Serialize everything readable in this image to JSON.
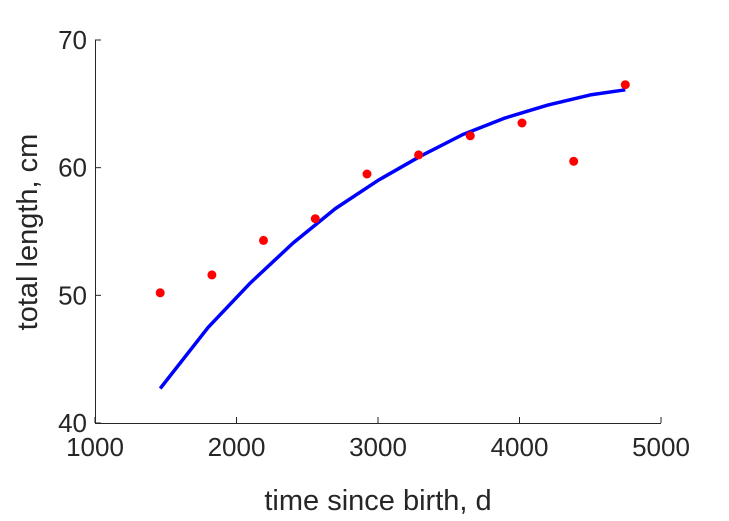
{
  "chart_data": {
    "type": "scatter",
    "xlabel": "time since birth, d",
    "ylabel": "total length, cm",
    "xlim": [
      1000,
      5000
    ],
    "ylim": [
      40,
      70
    ],
    "xticks": [
      "1000",
      "2000",
      "3000",
      "4000",
      "5000"
    ],
    "yticks": [
      "40",
      "50",
      "60",
      "70"
    ],
    "grid": false,
    "series": [
      {
        "type": "scatter",
        "color": "#ff0000",
        "x": [
          1461,
          1826,
          2191,
          2557,
          2922,
          3287,
          3652,
          4018,
          4383,
          4748
        ],
        "y": [
          50.2,
          51.6,
          54.3,
          56.0,
          59.5,
          61.0,
          62.5,
          63.5,
          60.5,
          66.5
        ]
      },
      {
        "type": "line",
        "color": "#0000ff",
        "x": [
          1461,
          1800,
          2100,
          2400,
          2700,
          3000,
          3300,
          3600,
          3900,
          4200,
          4500,
          4748
        ],
        "y": [
          42.7,
          47.5,
          51.0,
          54.1,
          56.8,
          59.0,
          60.9,
          62.6,
          63.9,
          64.9,
          65.7,
          66.1
        ]
      }
    ]
  }
}
